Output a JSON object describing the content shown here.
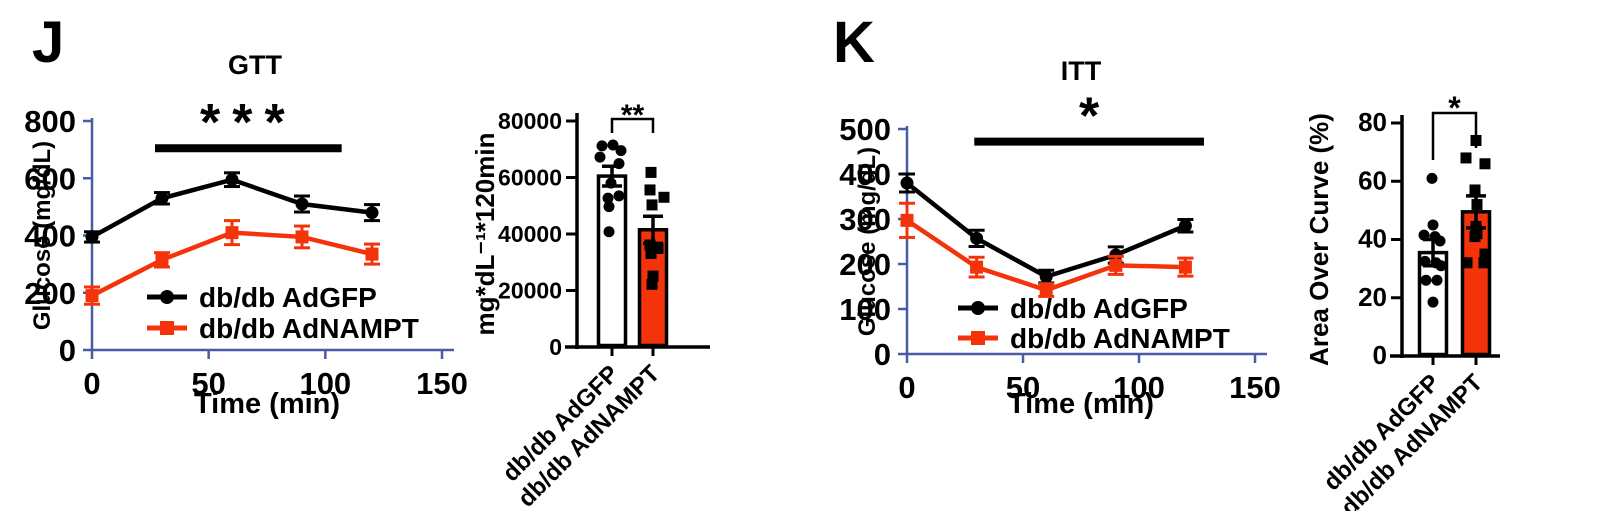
{
  "figure": {
    "panels": [
      {
        "letter": "J"
      },
      {
        "letter": "K"
      }
    ]
  },
  "colors": {
    "black": "#000000",
    "accent_red": "#F5330B",
    "axis_blue": "#4A5BA6",
    "background": "#FFFFFF"
  },
  "chart_data": [
    {
      "id": "chart-gtt-line",
      "type": "line",
      "panel": "J",
      "title": "GTT",
      "xlabel": "Time (min)",
      "ylabel": "Glucose (mg/dL)",
      "xlim": [
        0,
        150
      ],
      "xticks": [
        0,
        50,
        100,
        150
      ],
      "ylim": [
        0,
        800
      ],
      "yticks": [
        0,
        200,
        400,
        600,
        800
      ],
      "axis_color": "#4A5BA6",
      "x": [
        0,
        30,
        60,
        90,
        120
      ],
      "series": [
        {
          "name": "db/db AdGFP",
          "color": "#000000",
          "marker": "circle",
          "values": [
            395,
            530,
            595,
            510,
            480
          ],
          "errors": [
            18,
            20,
            24,
            28,
            28
          ]
        },
        {
          "name": "db/db AdNAMPT",
          "color": "#F5330B",
          "marker": "square",
          "values": [
            190,
            315,
            410,
            395,
            335
          ],
          "errors": [
            30,
            25,
            42,
            38,
            35
          ]
        }
      ],
      "significance": {
        "stars": "***",
        "x_start": 27,
        "x_end": 107,
        "y": 705
      },
      "legend_position": "inside-bottom-left",
      "grid": false
    },
    {
      "id": "chart-gtt-auc-bar",
      "type": "bar",
      "panel": "J",
      "ylabel": "mg*dL⁻¹*120min",
      "ylim": [
        0,
        80000
      ],
      "yticks": [
        0,
        20000,
        40000,
        60000,
        80000
      ],
      "categories": [
        "db/db AdGFP",
        "db/db AdNAMPT"
      ],
      "bars": [
        {
          "label": "db/db AdGFP",
          "fill": "#FFFFFF",
          "marker": "circle",
          "mean": 60500,
          "sem": 3500,
          "points": [
            [
              71200,
              -10
            ],
            [
              71500,
              1
            ],
            [
              69500,
              9
            ],
            [
              67200,
              -12
            ],
            [
              64900,
              7
            ],
            [
              58000,
              -1
            ],
            [
              53500,
              7
            ],
            [
              52700,
              -4
            ],
            [
              49700,
              -3
            ],
            [
              40800,
              -3
            ]
          ]
        },
        {
          "label": "db/db AdNAMPT",
          "fill": "#F5330B",
          "marker": "square",
          "mean": 41500,
          "sem": 4800,
          "points": [
            [
              61800,
              -2
            ],
            [
              55600,
              -3
            ],
            [
              53000,
              11
            ],
            [
              50300,
              -1
            ],
            [
              36100,
              -3
            ],
            [
              34900,
              5
            ],
            [
              33100,
              -2
            ],
            [
              25100,
              0
            ],
            [
              22200,
              -1
            ]
          ]
        }
      ],
      "significance": {
        "stars": "**"
      }
    },
    {
      "id": "chart-itt-line",
      "type": "line",
      "panel": "K",
      "title": "ITT",
      "xlabel": "Time (min)",
      "ylabel": "Glucose (mg/dL)",
      "xlim": [
        0,
        150
      ],
      "xticks": [
        0,
        50,
        100,
        150
      ],
      "ylim": [
        0,
        500
      ],
      "yticks": [
        0,
        100,
        200,
        300,
        400,
        500
      ],
      "axis_color": "#4A5BA6",
      "x": [
        0,
        30,
        60,
        90,
        120
      ],
      "series": [
        {
          "name": "db/db AdGFP",
          "color": "#000000",
          "marker": "circle",
          "values": [
            380,
            257,
            172,
            220,
            285
          ],
          "errors": [
            20,
            18,
            14,
            18,
            14
          ]
        },
        {
          "name": "db/db AdNAMPT",
          "color": "#F5330B",
          "marker": "square",
          "values": [
            297,
            193,
            142,
            197,
            193
          ],
          "errors": [
            38,
            22,
            14,
            20,
            20
          ]
        }
      ],
      "significance": {
        "stars": "*",
        "x_start": 29,
        "x_end": 128,
        "y": 472
      },
      "legend_position": "inside-bottom-left",
      "grid": false
    },
    {
      "id": "chart-itt-aoc-bar",
      "type": "bar",
      "panel": "K",
      "ylabel": "Area Over Curve (%)",
      "ylim": [
        0,
        80
      ],
      "yticks": [
        0,
        20,
        40,
        60,
        80
      ],
      "categories": [
        "db/db AdGFP",
        "db/db AdNAMPT"
      ],
      "bars": [
        {
          "label": "db/db AdGFP",
          "fill": "#FFFFFF",
          "marker": "circle",
          "mean": 35.5,
          "sem": 4.5,
          "points": [
            [
              61,
              -1
            ],
            [
              45,
              0
            ],
            [
              41.5,
              -9
            ],
            [
              41,
              2
            ],
            [
              39.5,
              7
            ],
            [
              32.5,
              -8
            ],
            [
              32,
              3
            ],
            [
              31,
              8
            ],
            [
              26,
              -7
            ],
            [
              26,
              4
            ],
            [
              18.5,
              0
            ]
          ]
        },
        {
          "label": "db/db AdNAMPT",
          "fill": "#F5330B",
          "marker": "square",
          "mean": 49.5,
          "sem": 5.5,
          "points": [
            [
              74,
              0
            ],
            [
              68,
              -10
            ],
            [
              66,
              9
            ],
            [
              57,
              -1
            ],
            [
              52,
              1
            ],
            [
              44.5,
              0
            ],
            [
              42,
              1
            ],
            [
              41,
              -1
            ],
            [
              35,
              9
            ],
            [
              32,
              -9
            ],
            [
              32,
              8
            ]
          ]
        }
      ],
      "significance": {
        "stars": "*"
      }
    }
  ]
}
